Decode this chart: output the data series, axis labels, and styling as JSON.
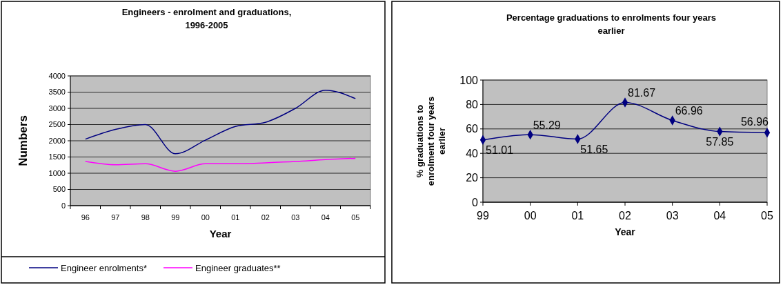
{
  "chart_data": [
    {
      "type": "line",
      "title": "Engineers - enrolment and graduations, 1996-2005",
      "xlabel": "Year",
      "ylabel": "Numbers",
      "categories": [
        "96",
        "97",
        "98",
        "99",
        "00",
        "01",
        "02",
        "03",
        "04",
        "05"
      ],
      "series": [
        {
          "name": "Engineer enrolments*",
          "color": "#000080",
          "values": [
            2050,
            2350,
            2500,
            1600,
            2020,
            2440,
            2570,
            3000,
            3560,
            3300
          ]
        },
        {
          "name": "Engineer graduates**",
          "color": "#ff00ff",
          "values": [
            1360,
            1260,
            1290,
            1060,
            1290,
            1290,
            1320,
            1360,
            1420,
            1460
          ]
        }
      ],
      "ylim": [
        0,
        4000
      ],
      "yticks": [
        0,
        500,
        1000,
        1500,
        2000,
        2500,
        3000,
        3500,
        4000
      ],
      "grid": "y",
      "legend": "bottom"
    },
    {
      "type": "line",
      "title": "Percentage graduations to enrolments four years earlier",
      "xlabel": "Year",
      "ylabel": "% graduations to enrolment four years earlier",
      "categories": [
        "99",
        "00",
        "01",
        "02",
        "03",
        "04",
        "05"
      ],
      "series": [
        {
          "color": "#000080",
          "values": [
            51.01,
            55.29,
            51.65,
            81.67,
            66.96,
            57.85,
            56.96
          ]
        }
      ],
      "ylim": [
        0,
        100
      ],
      "yticks": [
        0,
        20,
        40,
        60,
        80,
        100
      ],
      "grid": "y",
      "marker": "diamond",
      "data_labels": true
    }
  ]
}
